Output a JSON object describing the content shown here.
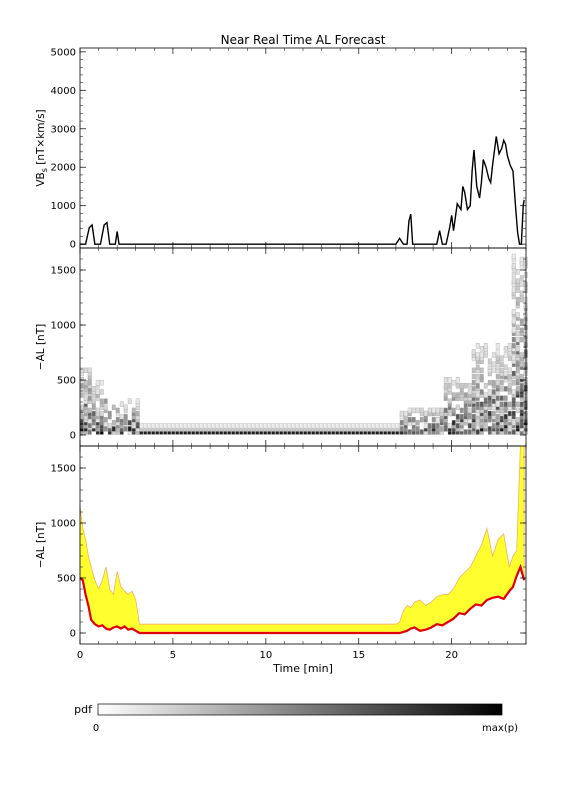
{
  "chart_data": {
    "title": "Near Real Time AL Forecast",
    "x_axis": {
      "label": "Time [min]",
      "range": [
        0,
        24
      ],
      "ticks": [
        0,
        5,
        10,
        15,
        20
      ]
    },
    "panels": [
      {
        "type": "line",
        "ylabel": "VB",
        "ylabel_sub": "s",
        "ylabel_units": " [nT×km/s]",
        "ylim": [
          -100,
          5100
        ],
        "yticks": [
          0,
          1000,
          2000,
          3000,
          4000,
          5000
        ],
        "series": [
          {
            "x": [
              0,
              0.3,
              0.5,
              0.65,
              0.8,
              1.1,
              1.3,
              1.45,
              1.6,
              1.9,
              2.0,
              2.1,
              2.3,
              3,
              5,
              10,
              15,
              17.0,
              17.2,
              17.4,
              17.6,
              17.7,
              17.8,
              17.9,
              18.2,
              18.8,
              19.2,
              19.35,
              19.5,
              19.7,
              19.9,
              20.0,
              20.1,
              20.3,
              20.5,
              20.6,
              20.7,
              20.85,
              21.0,
              21.1,
              21.2,
              21.35,
              21.5,
              21.6,
              21.7,
              21.85,
              22.0,
              22.1,
              22.2,
              22.4,
              22.55,
              22.7,
              22.8,
              22.9,
              23.0,
              23.15,
              23.3,
              23.45,
              23.55,
              23.65,
              23.75,
              23.85,
              23.9
            ],
            "values": [
              0,
              0,
              430,
              500,
              0,
              0,
              500,
              560,
              0,
              0,
              330,
              0,
              0,
              0,
              0,
              0,
              0,
              0,
              150,
              0,
              0,
              600,
              780,
              0,
              0,
              0,
              0,
              350,
              0,
              0,
              450,
              750,
              350,
              1050,
              900,
              1500,
              1350,
              900,
              1000,
              1900,
              2450,
              1500,
              1200,
              1600,
              2200,
              2000,
              1700,
              1600,
              2050,
              2800,
              2350,
              2500,
              2700,
              2600,
              2300,
              2050,
              1900,
              900,
              300,
              0,
              0,
              1000,
              1150
            ]
          }
        ]
      },
      {
        "type": "heatmap",
        "ylabel": "−AL [nT]",
        "ylim": [
          -100,
          1700
        ],
        "yticks": [
          0,
          500,
          1000,
          1500
        ],
        "z_description": "probability density of −AL per time bin (grayscale)",
        "low_time_ranges": [
          [
            3.2,
            17.2
          ]
        ]
      },
      {
        "type": "area",
        "ylabel": "−AL [nT]",
        "ylim": [
          -100,
          1700
        ],
        "yticks": [
          0,
          500,
          1000,
          1500
        ],
        "series": [
          {
            "x": [
              0,
              0.15,
              0.3,
              0.45,
              0.6,
              0.8,
              1.0,
              1.2,
              1.4,
              1.6,
              1.8,
              2.0,
              2.2,
              2.4,
              2.6,
              2.8,
              3.0,
              3.2,
              3.4,
              3.6,
              4,
              10,
              17.0,
              17.2,
              17.4,
              17.6,
              17.8,
              18.0,
              18.3,
              18.6,
              18.9,
              19.2,
              19.5,
              19.8,
              20.1,
              20.4,
              20.7,
              21.0,
              21.3,
              21.6,
              21.9,
              22.2,
              22.5,
              22.8,
              23.1,
              23.3,
              23.5,
              23.7,
              23.9
            ],
            "values": [
              500,
              480,
              350,
              250,
              120,
              80,
              60,
              70,
              40,
              30,
              50,
              60,
              40,
              60,
              30,
              40,
              20,
              0,
              0,
              0,
              0,
              0,
              0,
              0,
              10,
              20,
              40,
              50,
              20,
              30,
              50,
              80,
              70,
              100,
              130,
              180,
              170,
              220,
              260,
              250,
              300,
              320,
              330,
              310,
              380,
              420,
              520,
              600,
              480
            ]
          },
          {
            "x": [
              0,
              0.15,
              0.3,
              0.45,
              0.6,
              0.8,
              1.0,
              1.2,
              1.4,
              1.6,
              1.8,
              2.0,
              2.2,
              2.4,
              2.6,
              2.8,
              3.0,
              3.2,
              3.4,
              3.6,
              4,
              10,
              17.0,
              17.2,
              17.4,
              17.6,
              17.8,
              18.0,
              18.3,
              18.6,
              18.9,
              19.2,
              19.5,
              19.8,
              20.1,
              20.4,
              20.7,
              21.0,
              21.3,
              21.6,
              21.9,
              22.2,
              22.5,
              22.8,
              23.1,
              23.3,
              23.5,
              23.7,
              23.9
            ],
            "values": [
              1150,
              950,
              850,
              700,
              600,
              480,
              400,
              480,
              600,
              400,
              350,
              560,
              420,
              380,
              350,
              380,
              300,
              80,
              80,
              80,
              80,
              80,
              80,
              100,
              200,
              250,
              230,
              280,
              300,
              250,
              280,
              330,
              350,
              350,
              400,
              500,
              550,
              600,
              700,
              800,
              950,
              700,
              850,
              900,
              600,
              700,
              750,
              1700,
              1700
            ]
          }
        ]
      }
    ],
    "colorbar": {
      "label": "pdf",
      "min_label": "0",
      "max_label": "max(p)"
    },
    "colors": {
      "line": "#000000",
      "median": "#e00000",
      "fill": "#ffff30",
      "fill_edge": "#f5b060",
      "band": "#fff6b0"
    }
  }
}
